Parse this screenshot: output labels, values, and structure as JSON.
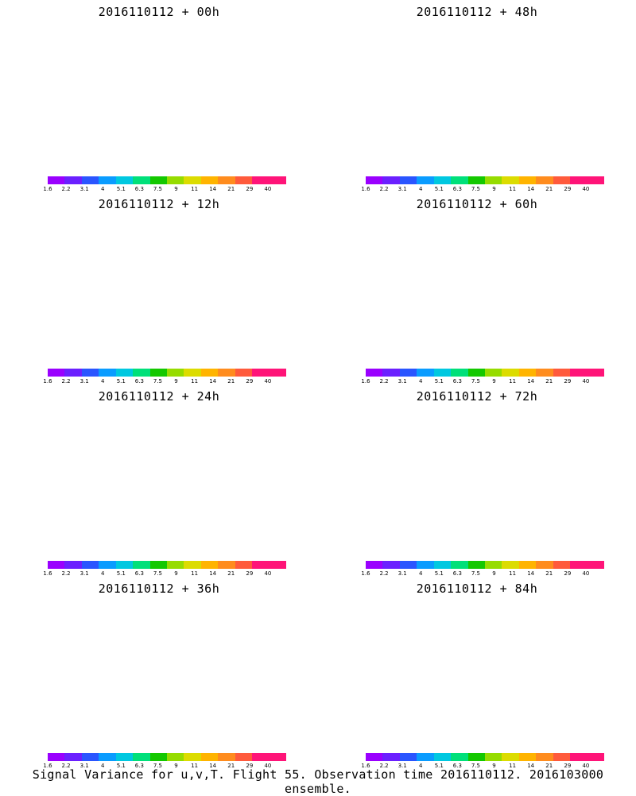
{
  "colors": {
    "scale": [
      "#9a00ff",
      "#9a00ff",
      "#6b20ff",
      "#2a55ff",
      "#0a9cff",
      "#00c8e0",
      "#00e07a",
      "#14c800",
      "#96dc00",
      "#dcdc00",
      "#ffb400",
      "#ff8c1e",
      "#ff5a3c",
      "#ff1478",
      "#ff1478"
    ],
    "coast": "#000000"
  },
  "colorbar_labels": [
    "1.6",
    "2.2",
    "3.1",
    "4",
    "5.1",
    "6.3",
    "7.5",
    "9",
    "11",
    "14",
    "21",
    "29",
    "40"
  ],
  "panels": [
    {
      "title": "2016110112 + 00h",
      "level": 0
    },
    {
      "title": "2016110112 + 48h",
      "level": 4
    },
    {
      "title": "2016110112 + 12h",
      "level": 1
    },
    {
      "title": "2016110112 + 60h",
      "level": 5
    },
    {
      "title": "2016110112 + 24h",
      "level": 2
    },
    {
      "title": "2016110112 + 72h",
      "level": 6
    },
    {
      "title": "2016110112 + 36h",
      "level": 3
    },
    {
      "title": "2016110112 + 84h",
      "level": 7
    }
  ],
  "caption": "Signal Variance for u,v,T. Flight 55. Observation time 2016110112. 2016103000 ensemble."
}
